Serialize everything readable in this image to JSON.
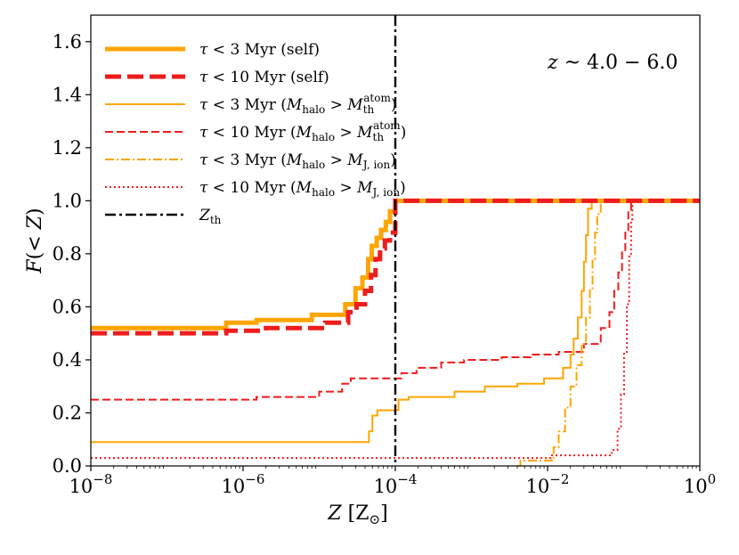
{
  "chart_data": {
    "type": "line",
    "title": "",
    "annotation": "z ~ 4.0 − 6.0",
    "xlabel": "Z [Z⊙]",
    "ylabel": "F(< Z)",
    "xscale": "log",
    "xlim": [
      1e-08,
      1
    ],
    "ylim": [
      0.0,
      1.7
    ],
    "grid": false,
    "legend_position": "top-left",
    "x_ticks": [
      {
        "value": 1e-08,
        "base": "10",
        "exp": "−8"
      },
      {
        "value": 1e-06,
        "base": "10",
        "exp": "−6"
      },
      {
        "value": 0.0001,
        "base": "10",
        "exp": "−4"
      },
      {
        "value": 0.01,
        "base": "10",
        "exp": "−2"
      },
      {
        "value": 1,
        "base": "10",
        "exp": "0"
      }
    ],
    "y_ticks": [
      {
        "value": 0.0,
        "label": "0.0"
      },
      {
        "value": 0.2,
        "label": "0.2"
      },
      {
        "value": 0.4,
        "label": "0.4"
      },
      {
        "value": 0.6,
        "label": "0.6"
      },
      {
        "value": 0.8,
        "label": "0.8"
      },
      {
        "value": 1.0,
        "label": "1.0"
      },
      {
        "value": 1.2,
        "label": "1.2"
      },
      {
        "value": 1.4,
        "label": "1.4"
      },
      {
        "value": 1.6,
        "label": "1.6"
      }
    ],
    "vline": {
      "name": "Z_th",
      "x": 0.0001,
      "color": "#000000",
      "style": "dashdot"
    },
    "series": [
      {
        "name": "τ < 3 Myr (self)",
        "color": "#FFA500",
        "style": "solid",
        "weight": "thick",
        "points": [
          [
            1e-08,
            0.52
          ],
          [
            6e-07,
            0.52
          ],
          [
            6e-07,
            0.54
          ],
          [
            1.5e-06,
            0.54
          ],
          [
            1.5e-06,
            0.55
          ],
          [
            8e-06,
            0.55
          ],
          [
            8e-06,
            0.57
          ],
          [
            2.2e-05,
            0.57
          ],
          [
            2.2e-05,
            0.61
          ],
          [
            3e-05,
            0.61
          ],
          [
            3e-05,
            0.67
          ],
          [
            3.7e-05,
            0.67
          ],
          [
            3.7e-05,
            0.71
          ],
          [
            4.4e-05,
            0.71
          ],
          [
            4.4e-05,
            0.78
          ],
          [
            4.9e-05,
            0.78
          ],
          [
            4.9e-05,
            0.83
          ],
          [
            5.7e-05,
            0.83
          ],
          [
            5.7e-05,
            0.86
          ],
          [
            6.5e-05,
            0.86
          ],
          [
            6.5e-05,
            0.89
          ],
          [
            7.5e-05,
            0.89
          ],
          [
            7.5e-05,
            0.92
          ],
          [
            8.5e-05,
            0.92
          ],
          [
            8.5e-05,
            0.96
          ],
          [
            0.0001,
            0.96
          ],
          [
            0.0001,
            1.0
          ],
          [
            1,
            1.0
          ]
        ]
      },
      {
        "name": "τ < 10 Myr (self)",
        "color": "#EE1C1C",
        "style": "dashed",
        "weight": "thick",
        "points": [
          [
            1e-08,
            0.5
          ],
          [
            6e-07,
            0.5
          ],
          [
            6e-07,
            0.51
          ],
          [
            2e-06,
            0.51
          ],
          [
            2e-06,
            0.52
          ],
          [
            1.2e-05,
            0.52
          ],
          [
            1.2e-05,
            0.54
          ],
          [
            2.4e-05,
            0.54
          ],
          [
            2.4e-05,
            0.58
          ],
          [
            3.1e-05,
            0.58
          ],
          [
            3.1e-05,
            0.61
          ],
          [
            4e-05,
            0.61
          ],
          [
            4e-05,
            0.66
          ],
          [
            4.8e-05,
            0.66
          ],
          [
            4.8e-05,
            0.72
          ],
          [
            5.5e-05,
            0.72
          ],
          [
            5.5e-05,
            0.78
          ],
          [
            6.3e-05,
            0.78
          ],
          [
            6.3e-05,
            0.82
          ],
          [
            7.3e-05,
            0.82
          ],
          [
            7.3e-05,
            0.85
          ],
          [
            8.5e-05,
            0.85
          ],
          [
            8.5e-05,
            0.88
          ],
          [
            0.0001,
            0.88
          ],
          [
            0.0001,
            1.0
          ],
          [
            1,
            1.0
          ]
        ]
      },
      {
        "name": "τ < 3 Myr (M_halo > M_th^atom)",
        "color": "#FFA500",
        "style": "solid",
        "weight": "thin",
        "points": [
          [
            1e-08,
            0.09
          ],
          [
            4.5e-05,
            0.09
          ],
          [
            4.5e-05,
            0.13
          ],
          [
            5e-05,
            0.13
          ],
          [
            5e-05,
            0.19
          ],
          [
            5.8e-05,
            0.19
          ],
          [
            5.8e-05,
            0.21
          ],
          [
            0.00011,
            0.21
          ],
          [
            0.00011,
            0.25
          ],
          [
            0.00015,
            0.25
          ],
          [
            0.00015,
            0.26
          ],
          [
            0.0006,
            0.26
          ],
          [
            0.0006,
            0.28
          ],
          [
            0.0015,
            0.28
          ],
          [
            0.0015,
            0.3
          ],
          [
            0.004,
            0.3
          ],
          [
            0.004,
            0.31
          ],
          [
            0.009,
            0.31
          ],
          [
            0.009,
            0.33
          ],
          [
            0.016,
            0.33
          ],
          [
            0.016,
            0.37
          ],
          [
            0.02,
            0.37
          ],
          [
            0.02,
            0.42
          ],
          [
            0.022,
            0.42
          ],
          [
            0.022,
            0.48
          ],
          [
            0.025,
            0.48
          ],
          [
            0.025,
            0.56
          ],
          [
            0.028,
            0.56
          ],
          [
            0.028,
            0.66
          ],
          [
            0.03,
            0.66
          ],
          [
            0.03,
            0.77
          ],
          [
            0.032,
            0.77
          ],
          [
            0.032,
            0.87
          ],
          [
            0.034,
            0.87
          ],
          [
            0.034,
            0.97
          ],
          [
            0.038,
            0.97
          ],
          [
            0.038,
            1.0
          ],
          [
            1,
            1.0
          ]
        ]
      },
      {
        "name": "τ < 10 Myr (M_halo > M_th^atom)",
        "color": "#EE1C1C",
        "style": "dashed",
        "weight": "thin",
        "points": [
          [
            1e-08,
            0.25
          ],
          [
            1.5e-06,
            0.25
          ],
          [
            1.5e-06,
            0.26
          ],
          [
            1e-05,
            0.26
          ],
          [
            1e-05,
            0.28
          ],
          [
            2e-05,
            0.28
          ],
          [
            2e-05,
            0.31
          ],
          [
            2.6e-05,
            0.31
          ],
          [
            2.6e-05,
            0.33
          ],
          [
            0.00012,
            0.33
          ],
          [
            0.00012,
            0.35
          ],
          [
            0.00019,
            0.35
          ],
          [
            0.00019,
            0.37
          ],
          [
            0.0004,
            0.37
          ],
          [
            0.0004,
            0.39
          ],
          [
            0.0008,
            0.39
          ],
          [
            0.0008,
            0.4
          ],
          [
            0.0025,
            0.4
          ],
          [
            0.0025,
            0.41
          ],
          [
            0.006,
            0.41
          ],
          [
            0.006,
            0.42
          ],
          [
            0.014,
            0.42
          ],
          [
            0.014,
            0.43
          ],
          [
            0.03,
            0.43
          ],
          [
            0.03,
            0.46
          ],
          [
            0.05,
            0.46
          ],
          [
            0.05,
            0.52
          ],
          [
            0.065,
            0.52
          ],
          [
            0.065,
            0.58
          ],
          [
            0.075,
            0.58
          ],
          [
            0.075,
            0.66
          ],
          [
            0.085,
            0.66
          ],
          [
            0.085,
            0.73
          ],
          [
            0.095,
            0.73
          ],
          [
            0.095,
            0.81
          ],
          [
            0.105,
            0.81
          ],
          [
            0.105,
            0.88
          ],
          [
            0.115,
            0.88
          ],
          [
            0.115,
            0.96
          ],
          [
            0.125,
            0.96
          ],
          [
            0.125,
            1.0
          ],
          [
            1,
            1.0
          ]
        ]
      },
      {
        "name": "τ < 3 Myr (M_halo > M_J,ion)",
        "color": "#FFA500",
        "style": "dashdot",
        "weight": "thin",
        "points": [
          [
            0.004,
            0.0
          ],
          [
            0.0044,
            0.0
          ],
          [
            0.0044,
            0.02
          ],
          [
            0.012,
            0.02
          ],
          [
            0.012,
            0.07
          ],
          [
            0.014,
            0.07
          ],
          [
            0.014,
            0.13
          ],
          [
            0.017,
            0.13
          ],
          [
            0.017,
            0.22
          ],
          [
            0.02,
            0.22
          ],
          [
            0.02,
            0.3
          ],
          [
            0.024,
            0.3
          ],
          [
            0.024,
            0.38
          ],
          [
            0.028,
            0.38
          ],
          [
            0.028,
            0.46
          ],
          [
            0.032,
            0.46
          ],
          [
            0.032,
            0.56
          ],
          [
            0.036,
            0.56
          ],
          [
            0.036,
            0.67
          ],
          [
            0.039,
            0.67
          ],
          [
            0.039,
            0.78
          ],
          [
            0.042,
            0.78
          ],
          [
            0.042,
            0.88
          ],
          [
            0.045,
            0.88
          ],
          [
            0.045,
            0.95
          ],
          [
            0.05,
            0.95
          ],
          [
            0.05,
            1.0
          ],
          [
            1,
            1.0
          ]
        ]
      },
      {
        "name": "τ < 10 Myr (M_halo > M_J,ion)",
        "color": "#EE1C1C",
        "style": "dotted",
        "weight": "thin",
        "points": [
          [
            1e-08,
            0.03
          ],
          [
            0.011,
            0.03
          ],
          [
            0.011,
            0.04
          ],
          [
            0.07,
            0.04
          ],
          [
            0.07,
            0.06
          ],
          [
            0.083,
            0.06
          ],
          [
            0.083,
            0.14
          ],
          [
            0.092,
            0.14
          ],
          [
            0.092,
            0.27
          ],
          [
            0.101,
            0.27
          ],
          [
            0.101,
            0.43
          ],
          [
            0.11,
            0.43
          ],
          [
            0.11,
            0.61
          ],
          [
            0.118,
            0.61
          ],
          [
            0.118,
            0.79
          ],
          [
            0.125,
            0.79
          ],
          [
            0.125,
            0.93
          ],
          [
            0.13,
            0.93
          ],
          [
            0.13,
            1.0
          ],
          [
            1,
            1.0
          ]
        ]
      }
    ]
  },
  "legend": [
    {
      "main": "τ < 3 Myr (self)",
      "extra": ""
    },
    {
      "main": "τ < 10 Myr (self)",
      "extra": ""
    },
    {
      "main": "τ < 3 Myr (M",
      "extra": "halo > M th atom)"
    },
    {
      "main": "τ < 10 Myr (M",
      "extra": "halo > M th atom)"
    },
    {
      "main": "τ < 3 Myr (M",
      "extra": "halo > M J, ion)"
    },
    {
      "main": "τ < 10 Myr (M",
      "extra": "halo > M J, ion)"
    },
    {
      "main": "Z",
      "extra": "th"
    }
  ]
}
